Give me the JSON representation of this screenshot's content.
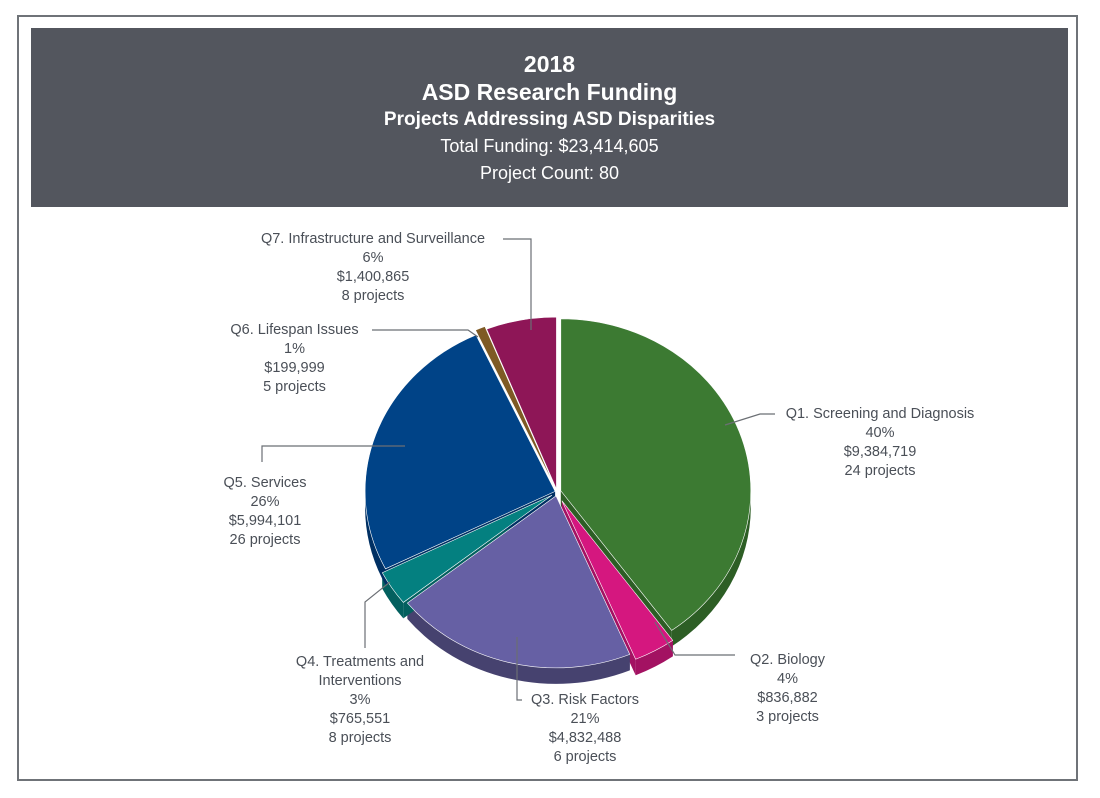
{
  "header": {
    "year": "2018",
    "title": "ASD Research Funding",
    "subtitle": "Projects Addressing ASD Disparities",
    "total_funding": "Total Funding: $23,414,605",
    "project_count": "Project Count: 80"
  },
  "chart_data": {
    "type": "pie",
    "title": "2018 ASD Research Funding",
    "subtitle": "Projects Addressing ASD Disparities",
    "total": 23414605,
    "project_count": 80,
    "start": "12 o'clock, clockwise",
    "slices": [
      {
        "name": "Q1. Screening and Diagnosis",
        "percent_label": "40%",
        "amount_label": "$9,384,719",
        "projects_label": "24 projects",
        "value": 9384719,
        "projects": 24,
        "color": "#3c7a32",
        "side": "#2d5e25"
      },
      {
        "name": "Q2. Biology",
        "percent_label": "4%",
        "amount_label": "$836,882",
        "projects_label": "3 projects",
        "value": 836882,
        "projects": 3,
        "color": "#d5177f",
        "side": "#a31262"
      },
      {
        "name": "Q3. Risk Factors",
        "percent_label": "21%",
        "amount_label": "$4,832,488",
        "projects_label": "6 projects",
        "value": 4832488,
        "projects": 6,
        "color": "#6660a4",
        "side": "#46426f"
      },
      {
        "name": "Q4. Treatments and Interventions",
        "name_line1": "Q4. Treatments and",
        "name_line2": "Interventions",
        "percent_label": "3%",
        "amount_label": "$765,551",
        "projects_label": "8 projects",
        "value": 765551,
        "projects": 8,
        "color": "#048080",
        "side": "#03605f"
      },
      {
        "name": "Q5. Services",
        "percent_label": "26%",
        "amount_label": "$5,994,101",
        "projects_label": "26 projects",
        "value": 5994101,
        "projects": 26,
        "color": "#004387",
        "side": "#003063"
      },
      {
        "name": "Q6. Lifespan Issues",
        "percent_label": "1%",
        "amount_label": "$199,999",
        "projects_label": "5 projects",
        "value": 199999,
        "projects": 5,
        "color": "#7e5a24",
        "side": "#5c4119"
      },
      {
        "name": "Q7. Infrastructure and Surveillance",
        "percent_label": "6%",
        "amount_label": "$1,400,865",
        "projects_label": "8 projects",
        "value": 1400865,
        "projects": 8,
        "color": "#8e1657",
        "side": "#6a1041"
      }
    ]
  },
  "colors": {
    "header_bg": "#53565e",
    "frame": "#6f7378",
    "label_text": "#4a4f57",
    "leader": "#6b6f74"
  }
}
